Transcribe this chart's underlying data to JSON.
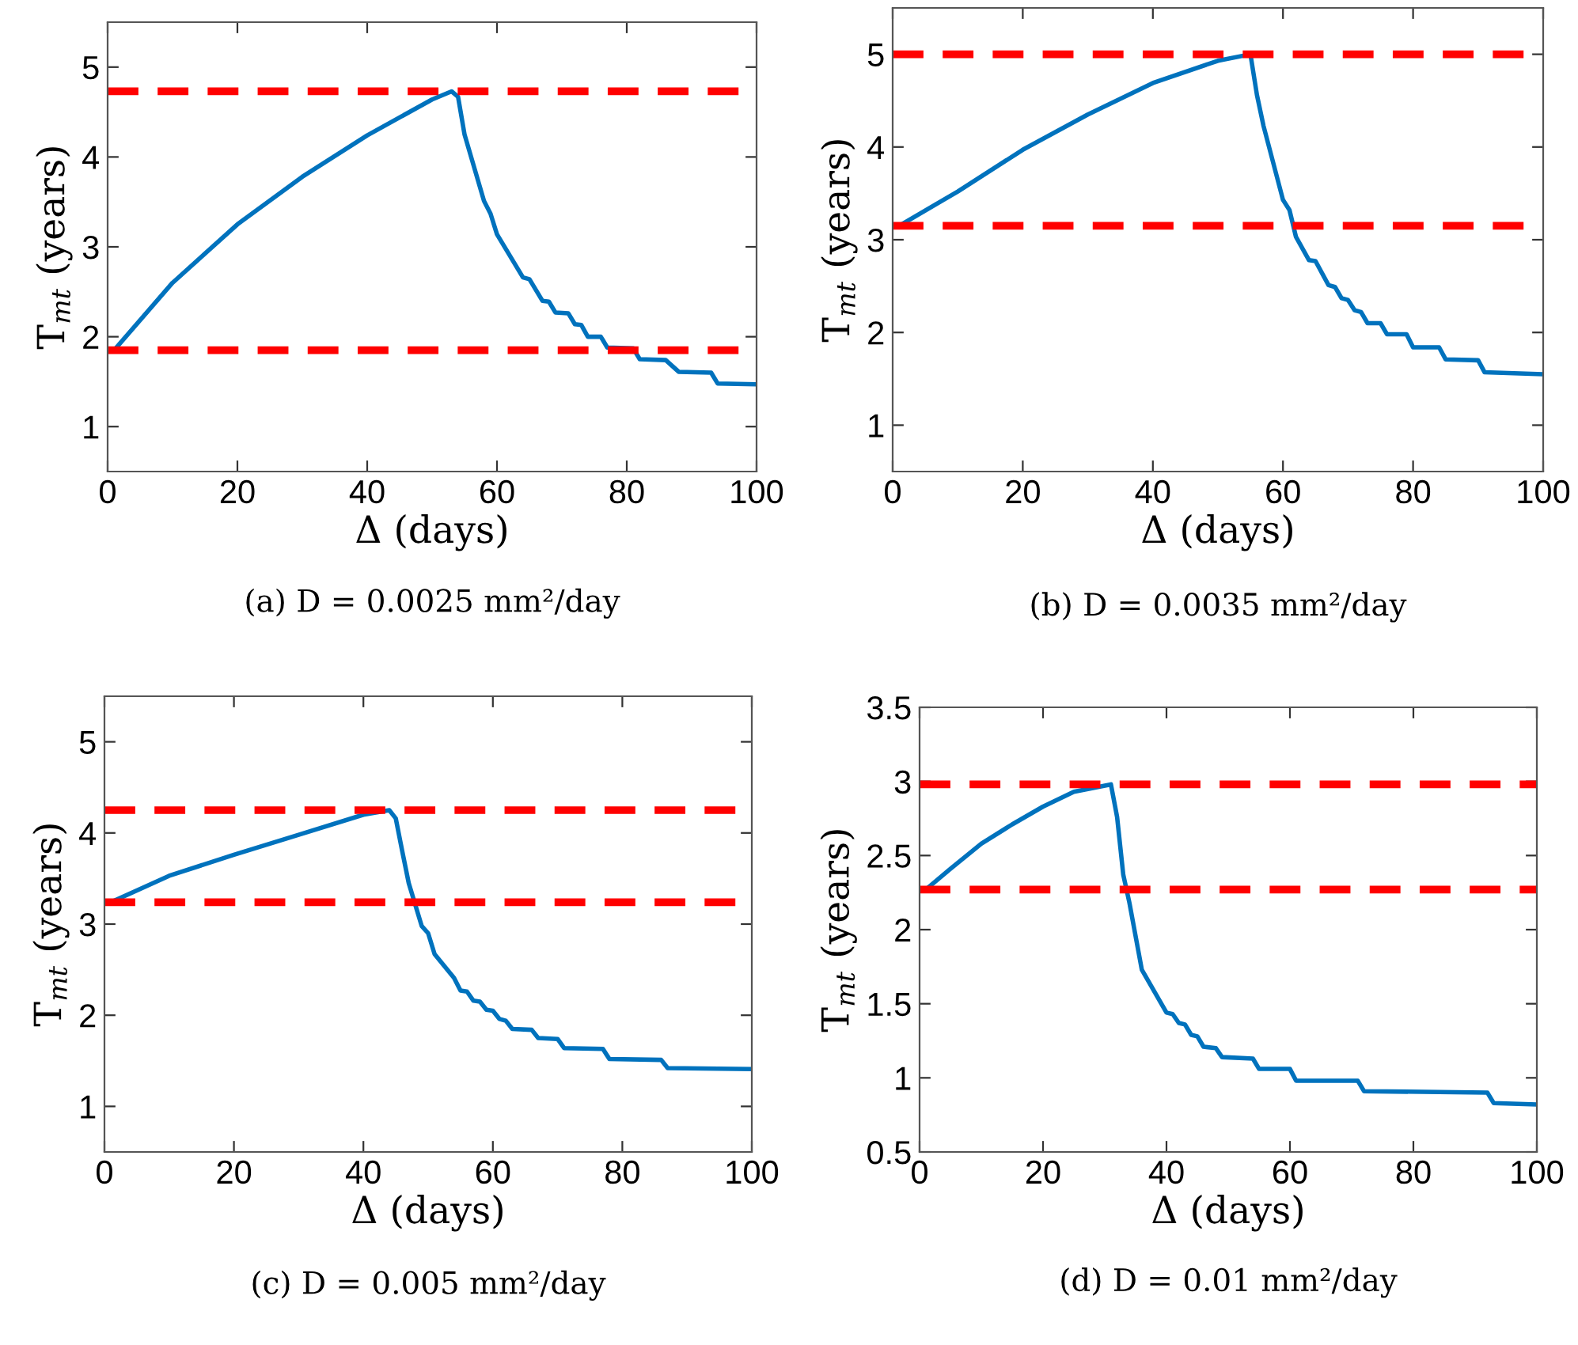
{
  "chart_data": [
    {
      "type": "line",
      "xlabel": "Δ (days)",
      "ylabel": "T$_{mt}$ (years)",
      "annotations": [
        "(a) D = 0.0025 mm²/day"
      ],
      "xlim": [
        0,
        100
      ],
      "ylim": [
        0.5,
        5.5
      ],
      "xticks": [
        0,
        20,
        40,
        60,
        80,
        100
      ],
      "yticks": [
        1,
        2,
        3,
        4,
        5
      ],
      "grid": false,
      "legend": false,
      "line_style": "solid",
      "series": [
        {
          "color": "#0072bd",
          "x": [
            1,
            10,
            20,
            30,
            40,
            50,
            53,
            54,
            55,
            58,
            59,
            60,
            64,
            65,
            67,
            68,
            69,
            71,
            72,
            73,
            74,
            76,
            77,
            81,
            82,
            86,
            88,
            93,
            94,
            100
          ],
          "values": [
            1.85,
            2.6,
            3.25,
            3.78,
            4.24,
            4.64,
            4.73,
            4.67,
            4.25,
            3.51,
            3.37,
            3.14,
            2.66,
            2.64,
            2.4,
            2.39,
            2.27,
            2.26,
            2.14,
            2.13,
            2.0,
            2.0,
            1.88,
            1.87,
            1.75,
            1.74,
            1.61,
            1.6,
            1.48,
            1.47
          ]
        }
      ],
      "ref_lines": [
        {
          "axis": "y",
          "value": 4.73,
          "color": "#ff0000",
          "line_style": "dashed"
        },
        {
          "axis": "y",
          "value": 1.85,
          "color": "#ff0000",
          "line_style": "dashed"
        }
      ]
    },
    {
      "type": "line",
      "xlabel": "Δ (days)",
      "ylabel": "T$_{mt}$ (years)",
      "annotations": [
        "(b) D = 0.0035 mm²/day"
      ],
      "xlim": [
        0,
        100
      ],
      "ylim": [
        0.5,
        5.5
      ],
      "xticks": [
        0,
        20,
        40,
        60,
        80,
        100
      ],
      "yticks": [
        1,
        2,
        3,
        4,
        5
      ],
      "grid": false,
      "legend": false,
      "line_style": "solid",
      "series": [
        {
          "color": "#0072bd",
          "x": [
            1,
            10,
            20,
            30,
            40,
            50,
            55,
            56,
            57,
            60,
            61,
            62,
            64,
            65,
            67,
            68,
            69,
            70,
            71,
            72,
            73,
            75,
            76,
            79,
            80,
            84,
            85,
            90,
            91,
            100
          ],
          "values": [
            3.15,
            3.52,
            3.97,
            4.35,
            4.69,
            4.93,
            5.0,
            4.56,
            4.23,
            3.43,
            3.32,
            3.03,
            2.78,
            2.77,
            2.51,
            2.49,
            2.37,
            2.35,
            2.24,
            2.22,
            2.1,
            2.1,
            1.98,
            1.98,
            1.84,
            1.84,
            1.71,
            1.7,
            1.57,
            1.55
          ]
        }
      ],
      "ref_lines": [
        {
          "axis": "y",
          "value": 5.0,
          "color": "#ff0000",
          "line_style": "dashed"
        },
        {
          "axis": "y",
          "value": 3.15,
          "color": "#ff0000",
          "line_style": "dashed"
        }
      ]
    },
    {
      "type": "line",
      "xlabel": "Δ (days)",
      "ylabel": "T$_{mt}$ (years)",
      "annotations": [
        "(c) D = 0.005 mm²/day"
      ],
      "xlim": [
        0,
        100
      ],
      "ylim": [
        0.5,
        5.5
      ],
      "xticks": [
        0,
        20,
        40,
        60,
        80,
        100
      ],
      "yticks": [
        1,
        2,
        3,
        4,
        5
      ],
      "grid": false,
      "legend": false,
      "line_style": "solid",
      "series": [
        {
          "color": "#0072bd",
          "x": [
            1,
            10,
            20,
            30,
            40,
            44,
            45,
            46,
            47,
            49,
            50,
            51,
            54,
            55,
            56,
            57,
            58,
            59,
            60,
            61,
            62,
            63,
            66,
            67,
            70,
            71,
            77,
            78,
            86,
            87,
            100
          ],
          "values": [
            3.24,
            3.53,
            3.76,
            3.98,
            4.2,
            4.25,
            4.16,
            3.8,
            3.45,
            2.98,
            2.9,
            2.67,
            2.41,
            2.27,
            2.26,
            2.16,
            2.15,
            2.06,
            2.05,
            1.96,
            1.94,
            1.85,
            1.84,
            1.75,
            1.74,
            1.64,
            1.63,
            1.52,
            1.51,
            1.42,
            1.41
          ]
        }
      ],
      "ref_lines": [
        {
          "axis": "y",
          "value": 4.25,
          "color": "#ff0000",
          "line_style": "dashed"
        },
        {
          "axis": "y",
          "value": 3.24,
          "color": "#ff0000",
          "line_style": "dashed"
        }
      ]
    },
    {
      "type": "line",
      "xlabel": "Δ (days)",
      "ylabel": "T$_{mt}$ (years)",
      "annotations": [
        "(d) D = 0.01 mm²/day"
      ],
      "xlim": [
        0,
        100
      ],
      "ylim": [
        0.5,
        3.5
      ],
      "xticks": [
        0,
        20,
        40,
        60,
        80,
        100
      ],
      "yticks": [
        0.5,
        1,
        1.5,
        2,
        2.5,
        3,
        3.5
      ],
      "grid": false,
      "legend": false,
      "line_style": "solid",
      "series": [
        {
          "color": "#0072bd",
          "x": [
            1,
            5,
            10,
            15,
            20,
            25,
            31,
            32,
            33,
            34,
            36,
            40,
            41,
            42,
            43,
            44,
            45,
            46,
            48,
            49,
            54,
            55,
            60,
            61,
            71,
            72,
            92,
            93,
            100
          ],
          "values": [
            2.27,
            2.41,
            2.58,
            2.71,
            2.83,
            2.93,
            2.98,
            2.76,
            2.37,
            2.18,
            1.73,
            1.44,
            1.43,
            1.37,
            1.36,
            1.29,
            1.28,
            1.21,
            1.2,
            1.14,
            1.13,
            1.06,
            1.06,
            0.98,
            0.98,
            0.91,
            0.9,
            0.83,
            0.82
          ]
        }
      ],
      "ref_lines": [
        {
          "axis": "y",
          "value": 2.98,
          "color": "#ff0000",
          "line_style": "dashed"
        },
        {
          "axis": "y",
          "value": 2.27,
          "color": "#ff0000",
          "line_style": "dashed"
        }
      ]
    }
  ]
}
